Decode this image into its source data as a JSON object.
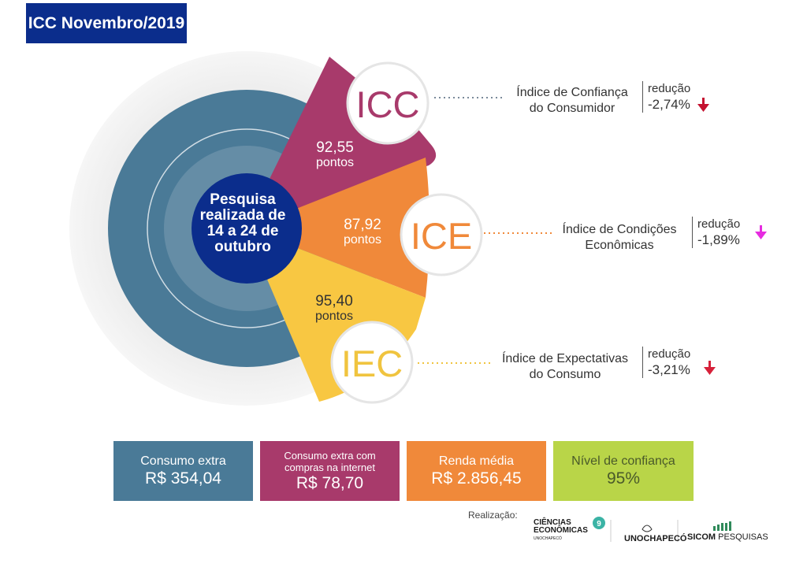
{
  "title": "ICC Novembro/2019",
  "center": {
    "lines": [
      "Pesquisa",
      "realizada de",
      "14 a 24 de",
      "outubro"
    ]
  },
  "indices": [
    {
      "abbr": "ICC",
      "value": "92,55",
      "unit": "pontos",
      "name_lines": [
        "Índice de Confiança",
        "do Consumidor"
      ],
      "change_label": "redução",
      "change_pct": "-2,74%",
      "color": "#a83a6b",
      "arrow_color": "#c41230"
    },
    {
      "abbr": "ICE",
      "value": "87,92",
      "unit": "pontos",
      "name_lines": [
        "Índice de Condições",
        "Econômicas"
      ],
      "change_label": "redução",
      "change_pct": "-1,89%",
      "color": "#f0893a",
      "arrow_color": "#e62ce0"
    },
    {
      "abbr": "IEC",
      "value": "95,40",
      "unit": "pontos",
      "name_lines": [
        "Índice de Expectativas",
        "do Consumo"
      ],
      "change_label": "redução",
      "change_pct": "-3,21%",
      "color": "#f8c742",
      "arrow_color": "#d7213a"
    }
  ],
  "boxes": [
    {
      "label_lines": [
        "Consumo extra"
      ],
      "value": "R$ 354,04",
      "color": "#4a7a97"
    },
    {
      "label_lines": [
        "Consumo extra com",
        "compras na internet"
      ],
      "value": "R$ 78,70",
      "color": "#a83a6b"
    },
    {
      "label_lines": [
        "Renda média"
      ],
      "value": "R$ 2.856,45",
      "color": "#f0893a"
    },
    {
      "label_lines": [
        "Nível de confiança"
      ],
      "value": "95%",
      "color": "#b9d548"
    }
  ],
  "footer": {
    "label": "Realização:",
    "logo_ce_lines": [
      "CIÊNCIAS",
      "ECONÔMICAS"
    ],
    "logo_ce_sub": "UNOCHAPECÓ",
    "logo_ce_badge": "9",
    "logo_uno": "UNOCHAPECÓ",
    "logo_sicom_bold": "SICOM",
    "logo_sicom_rest": " PESQUISAS"
  },
  "colors": {
    "title_bg": "#0b2d8c",
    "center_circle": "#0b2d8c",
    "ring_main": "#4a7a97",
    "halo": "#eeeeee"
  }
}
